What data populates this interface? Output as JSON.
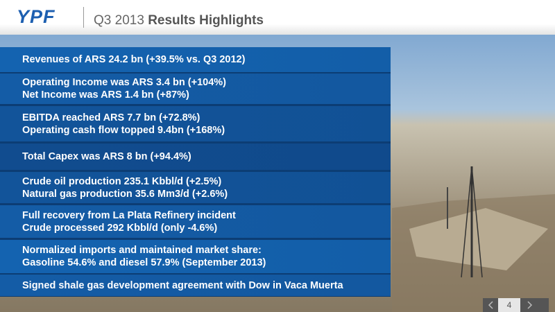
{
  "header": {
    "logo": "YPF",
    "title_prefix": "Q3 2013",
    "title": "Results Highlights"
  },
  "highlights": [
    [
      "Revenues of ARS 24.2 bn (+39.5% vs. Q3 2012)"
    ],
    [
      "Operating Income was ARS 3.4 bn (+104%)",
      "Net Income was ARS 1.4 bn (+87%)"
    ],
    [
      "EBITDA reached ARS 7.7 bn (+72.8%)",
      "Operating cash flow topped 9.4bn (+168%)"
    ],
    [
      "Total Capex was ARS 8 bn (+94.4%)"
    ],
    [
      "Crude oil production 235.1 Kbbl/d (+2.5%)",
      "Natural gas production 35.6 Mm3/d (+2.6%)"
    ],
    [
      "Full recovery from La Plata Refinery incident",
      "Crude processed 292 Kbbl/d (only -4.6%)"
    ],
    [
      "Normalized imports and maintained market share:",
      "Gasoline 54.6% and diesel 57.9% (September 2013)"
    ],
    [
      "Signed shale gas development agreement with Dow in Vaca Muerta"
    ]
  ],
  "page": "4"
}
